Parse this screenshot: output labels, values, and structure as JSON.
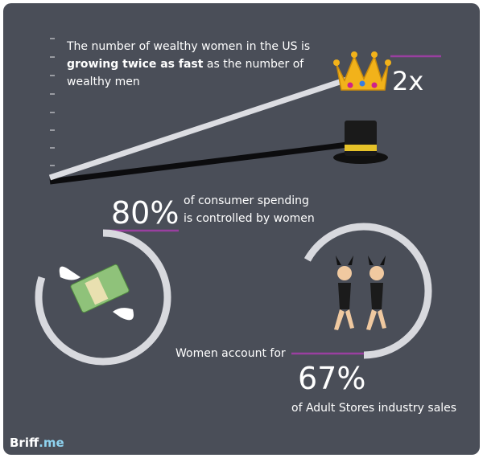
{
  "headline": {
    "part1": "The number of wealthy women in the US is",
    "bold": "growing twice as fast",
    "part2": "as the number of",
    "part3": "wealthy men"
  },
  "growth_label": "2x",
  "stats": [
    {
      "value": 80,
      "label": "80%",
      "text1": "of consumer spending",
      "text2": "is controlled by women"
    },
    {
      "value": 67,
      "label": "67%",
      "text1": "Women account for",
      "text2": "of Adult Stores industry sales"
    }
  ],
  "brand": {
    "name": "Briff",
    "domain": ".me"
  }
}
